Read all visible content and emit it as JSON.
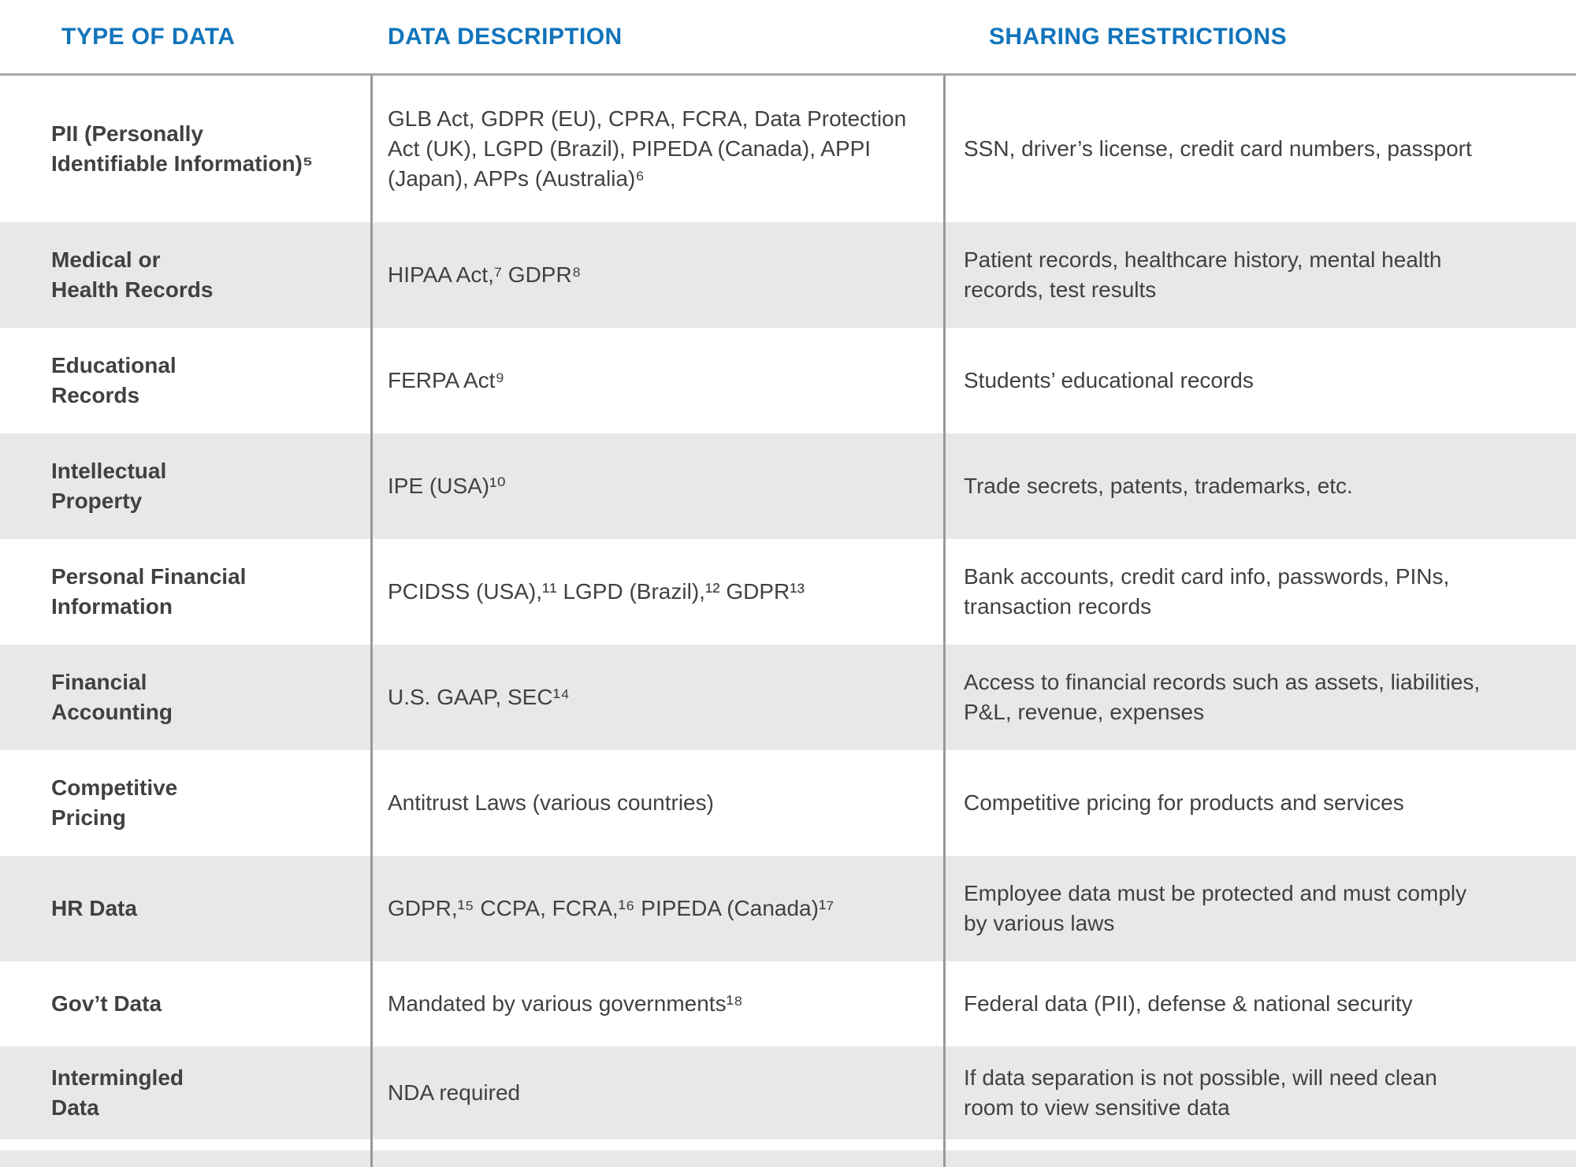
{
  "colors": {
    "header_blue": "#1274bb",
    "row_stripe_gray": "#e9e8e8",
    "body_text": "#414042",
    "divider_gray": "#97999c"
  },
  "table": {
    "columns": [
      {
        "label": "TYPE OF DATA"
      },
      {
        "label": "DATA DESCRIPTION"
      },
      {
        "label": "SHARING RESTRICTIONS"
      }
    ],
    "rows": [
      {
        "type": "PII (Personally\nIdentifiable Information)⁵",
        "description": "GLB Act, GDPR (EU), CPRA, FCRA, Data Protection\nAct (UK), LGPD (Brazil), PIPEDA (Canada), APPI\n(Japan), APPs (Australia)⁶",
        "restrictions": "SSN, driver’s license, credit card numbers, passport"
      },
      {
        "type": "Medical or\nHealth Records",
        "description": "HIPAA Act,⁷ GDPR⁸",
        "restrictions": "Patient records, healthcare history, mental health\nrecords, test results"
      },
      {
        "type": "Educational\nRecords",
        "description": "FERPA Act⁹",
        "restrictions": "Students’ educational records"
      },
      {
        "type": "Intellectual\nProperty",
        "description": "IPE (USA)¹⁰",
        "restrictions": "Trade secrets, patents, trademarks, etc."
      },
      {
        "type": "Personal Financial\nInformation",
        "description": "PCIDSS (USA),¹¹ LGPD (Brazil),¹² GDPR¹³",
        "restrictions": "Bank accounts, credit card info, passwords, PINs,\ntransaction records"
      },
      {
        "type": "Financial\nAccounting",
        "description": "U.S. GAAP, SEC¹⁴",
        "restrictions": "Access to financial records such as assets, liabilities,\nP&L, revenue, expenses"
      },
      {
        "type": "Competitive\nPricing",
        "description": "Antitrust Laws (various countries)",
        "restrictions": "Competitive pricing for products and services"
      },
      {
        "type": "HR Data",
        "description": "GDPR,¹⁵ CCPA, FCRA,¹⁶ PIPEDA (Canada)¹⁷",
        "restrictions": "Employee data must be protected and must comply\nby various laws"
      },
      {
        "type": "Gov’t Data",
        "description": "Mandated by various governments¹⁸",
        "restrictions": "Federal data (PII), defense & national security"
      },
      {
        "type": "Intermingled\nData",
        "description": "NDA required",
        "restrictions": "If data separation is not possible, will need clean\nroom to view sensitive data"
      }
    ]
  }
}
